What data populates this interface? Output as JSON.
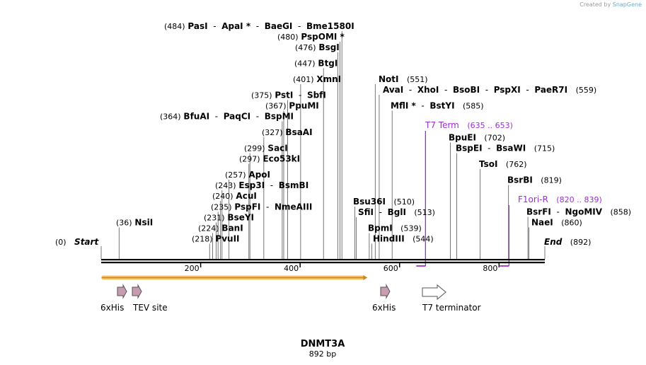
{
  "watermark": {
    "prefix": "Created by",
    "brand": "SnapGene"
  },
  "sequence": {
    "name": "DNMT3A",
    "length_label": "892 bp",
    "length": 892
  },
  "ruler": {
    "ticks": [
      200,
      400,
      600,
      800
    ]
  },
  "ends": [
    {
      "pos": 0,
      "pos_label": "(0)",
      "name": "Start"
    },
    {
      "pos": 892,
      "pos_label": "(892)",
      "name": "End"
    }
  ],
  "sites": [
    {
      "pos_label": "(484)",
      "names": [
        "PasI",
        "ApaI *",
        "BaeGI",
        "Bme1580I"
      ],
      "cut": 484
    },
    {
      "pos_label": "(480)",
      "names": [
        "PspOMI *"
      ],
      "cut": 480
    },
    {
      "pos_label": "(476)",
      "names": [
        "BsgI"
      ],
      "cut": 476
    },
    {
      "pos_label": "(447)",
      "names": [
        "BtgI"
      ],
      "cut": 447
    },
    {
      "pos_label": "(401)",
      "names": [
        "XmnI"
      ],
      "cut": 401
    },
    {
      "pos_label": "(375)",
      "names": [
        "PstI",
        "SbfI"
      ],
      "cut": 375
    },
    {
      "pos_label": "(367)",
      "names": [
        "PpuMI"
      ],
      "cut": 367
    },
    {
      "pos_label": "(364)",
      "names": [
        "BfuAI",
        "PaqCI",
        "BspMI"
      ],
      "cut": 364
    },
    {
      "pos_label": "(327)",
      "names": [
        "BsaAI"
      ],
      "cut": 327
    },
    {
      "pos_label": "(299)",
      "names": [
        "SacI"
      ],
      "cut": 299
    },
    {
      "pos_label": "(297)",
      "names": [
        "Eco53kI"
      ],
      "cut": 297
    },
    {
      "pos_label": "(257)",
      "names": [
        "ApoI"
      ],
      "cut": 257
    },
    {
      "pos_label": "(243)",
      "names": [
        "Esp3I",
        "BsmBI"
      ],
      "cut": 243
    },
    {
      "pos_label": "(240)",
      "names": [
        "AcuI"
      ],
      "cut": 240
    },
    {
      "pos_label": "(235)",
      "names": [
        "PspFI",
        "NmeAIII"
      ],
      "cut": 235
    },
    {
      "pos_label": "(231)",
      "names": [
        "BseYI"
      ],
      "cut": 231
    },
    {
      "pos_label": "(224)",
      "names": [
        "BanI"
      ],
      "cut": 224
    },
    {
      "pos_label": "(218)",
      "names": [
        "PvuII"
      ],
      "cut": 218
    },
    {
      "pos_label": "(36)",
      "names": [
        "NsiI"
      ],
      "cut": 36
    },
    {
      "pos_label": "(551)",
      "names": [
        "NotI"
      ],
      "cut": 551,
      "label_after": true
    },
    {
      "pos_label": "(559)",
      "names": [
        "AvaI",
        "XhoI",
        "BsoBI",
        "PspXI",
        "PaeR7I"
      ],
      "cut": 559,
      "label_after": true
    },
    {
      "pos_label": "(585)",
      "names": [
        "MflI *",
        "BstYI"
      ],
      "cut": 585,
      "label_after": true
    },
    {
      "pos_label": "(510)",
      "names": [
        "Bsu36I"
      ],
      "cut": 510,
      "label_after": true
    },
    {
      "pos_label": "(513)",
      "names": [
        "SfiI",
        "BglI"
      ],
      "cut": 513,
      "label_after": true
    },
    {
      "pos_label": "(539)",
      "names": [
        "BpmI"
      ],
      "cut": 539,
      "label_after": true
    },
    {
      "pos_label": "(544)",
      "names": [
        "HindIII"
      ],
      "cut": 544,
      "label_after": true
    },
    {
      "pos_label": "(702)",
      "names": [
        "BpuEI"
      ],
      "cut": 702,
      "label_after": true
    },
    {
      "pos_label": "(715)",
      "names": [
        "BspEI",
        "BsaWI"
      ],
      "cut": 715,
      "label_after": true
    },
    {
      "pos_label": "(762)",
      "names": [
        "TsoI"
      ],
      "cut": 762,
      "label_after": true
    },
    {
      "pos_label": "(819)",
      "names": [
        "BsrBI"
      ],
      "cut": 819,
      "label_after": true
    },
    {
      "pos_label": "(858)",
      "names": [
        "BsrFI",
        "NgoMIV"
      ],
      "cut": 858,
      "label_after": true
    },
    {
      "pos_label": "(860)",
      "names": [
        "NaeI"
      ],
      "cut": 860,
      "label_after": true
    }
  ],
  "primers": [
    {
      "name": "T7 Term",
      "range": "(635 .. 653)",
      "start": 635,
      "end": 653,
      "color": "#9b30d0"
    },
    {
      "name": "F1ori-R",
      "range": "(820 .. 839)",
      "start": 820,
      "end": 839,
      "color": "#9b30d0"
    }
  ],
  "orf": {
    "start": 1,
    "end": 534,
    "color": "#f5b335",
    "outline": "#c9872a"
  },
  "features": [
    {
      "name": "6xHis",
      "start": 36,
      "end": 54,
      "color": "#c79bb0",
      "type": "tag"
    },
    {
      "name": "TEV site",
      "start": 63,
      "end": 84,
      "color": "#c79bb0",
      "type": "tag"
    },
    {
      "name": "6xHis",
      "start": 560,
      "end": 577,
      "color": "#c79bb0",
      "type": "tag"
    },
    {
      "name": "T7 terminator",
      "start": 645,
      "end": 692,
      "color": "#ffffff",
      "type": "terminator"
    }
  ]
}
